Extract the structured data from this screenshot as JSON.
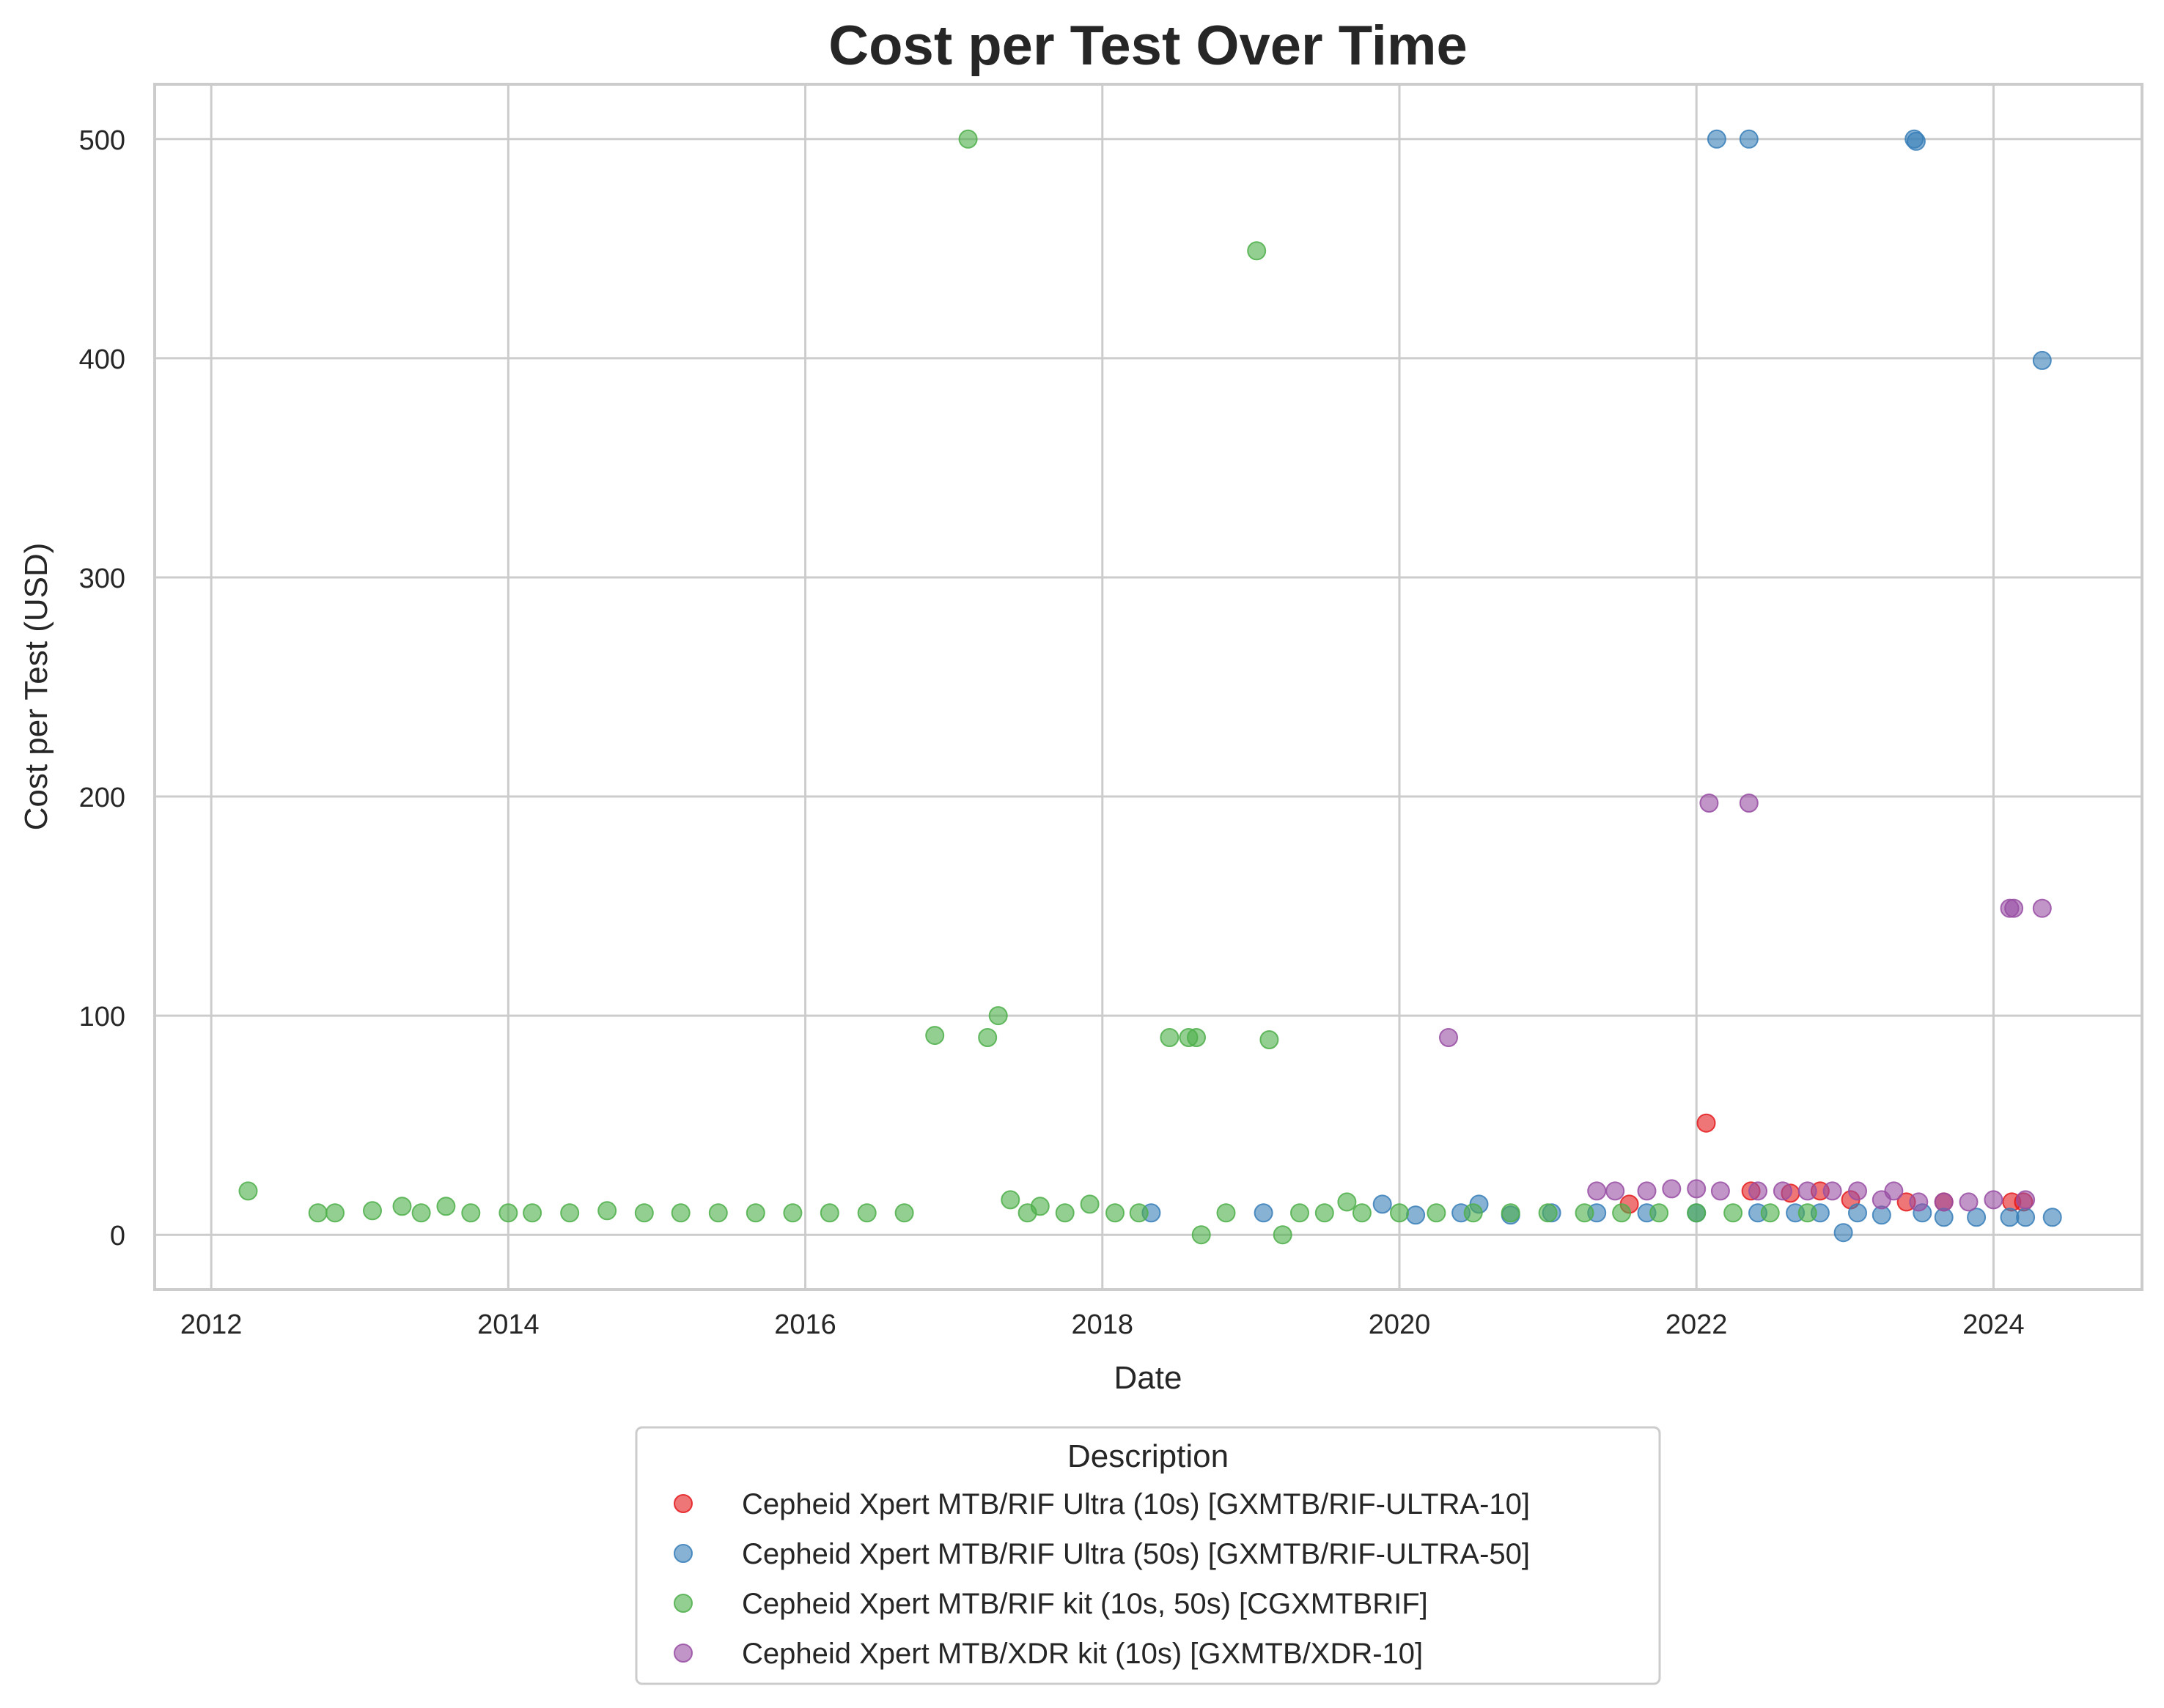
{
  "chart_data": {
    "type": "scatter",
    "title": "Cost per Test Over Time",
    "xlabel": "Date",
    "ylabel": "Cost per Test (USD)",
    "xlim": [
      "2011-08-15",
      "2025-01-01"
    ],
    "ylim": [
      -25,
      525
    ],
    "xticks": [
      "2012",
      "2014",
      "2016",
      "2018",
      "2020",
      "2022",
      "2024"
    ],
    "yticks": [
      0,
      100,
      200,
      300,
      400,
      500
    ],
    "grid": true,
    "legend": {
      "title": "Description",
      "position": "bottom-center"
    },
    "series": [
      {
        "name": "Cepheid Xpert MTB/RIF Ultra (10s) [GXMTB/RIF-ULTRA-10]",
        "color": "#e41a1c",
        "points": [
          [
            "2021-07-20",
            14
          ],
          [
            "2022-01-25",
            51
          ],
          [
            "2022-05-15",
            20
          ],
          [
            "2022-08-20",
            19
          ],
          [
            "2022-11-01",
            20
          ],
          [
            "2023-01-15",
            16
          ],
          [
            "2023-06-01",
            15
          ],
          [
            "2023-09-01",
            15
          ],
          [
            "2024-02-15",
            15
          ],
          [
            "2024-03-15",
            15
          ]
        ]
      },
      {
        "name": "Cepheid Xpert MTB/RIF Ultra (50s) [GXMTB/RIF-ULTRA-50]",
        "color": "#377eb8",
        "points": [
          [
            "2018-05-01",
            10
          ],
          [
            "2019-02-01",
            10
          ],
          [
            "2019-11-20",
            14
          ],
          [
            "2020-02-10",
            9
          ],
          [
            "2020-06-01",
            10
          ],
          [
            "2020-07-15",
            14
          ],
          [
            "2020-10-01",
            9
          ],
          [
            "2021-01-10",
            10
          ],
          [
            "2021-05-01",
            10
          ],
          [
            "2021-09-01",
            10
          ],
          [
            "2022-01-01",
            10
          ],
          [
            "2022-02-20",
            500
          ],
          [
            "2022-05-10",
            500
          ],
          [
            "2022-06-01",
            10
          ],
          [
            "2022-09-01",
            10
          ],
          [
            "2022-11-01",
            10
          ],
          [
            "2022-12-28",
            1
          ],
          [
            "2023-02-01",
            10
          ],
          [
            "2023-04-01",
            9
          ],
          [
            "2023-06-20",
            500
          ],
          [
            "2023-06-25",
            499
          ],
          [
            "2023-07-10",
            10
          ],
          [
            "2023-09-01",
            8
          ],
          [
            "2023-11-20",
            8
          ],
          [
            "2024-02-10",
            8
          ],
          [
            "2024-03-20",
            8
          ],
          [
            "2024-04-30",
            399
          ],
          [
            "2024-05-25",
            8
          ]
        ]
      },
      {
        "name": "Cepheid Xpert MTB/RIF kit (10s, 50s) [CGXMTBRIF]",
        "color": "#4daf4a",
        "points": [
          [
            "2012-04-01",
            20
          ],
          [
            "2012-09-20",
            10
          ],
          [
            "2012-11-01",
            10
          ],
          [
            "2013-02-01",
            11
          ],
          [
            "2013-04-15",
            13
          ],
          [
            "2013-06-01",
            10
          ],
          [
            "2013-08-01",
            13
          ],
          [
            "2013-10-01",
            10
          ],
          [
            "2014-01-01",
            10
          ],
          [
            "2014-03-01",
            10
          ],
          [
            "2014-06-01",
            10
          ],
          [
            "2014-09-01",
            11
          ],
          [
            "2014-12-01",
            10
          ],
          [
            "2015-03-01",
            10
          ],
          [
            "2015-06-01",
            10
          ],
          [
            "2015-09-01",
            10
          ],
          [
            "2015-12-01",
            10
          ],
          [
            "2016-03-01",
            10
          ],
          [
            "2016-06-01",
            10
          ],
          [
            "2016-09-01",
            10
          ],
          [
            "2016-11-15",
            91
          ],
          [
            "2017-02-05",
            500
          ],
          [
            "2017-03-25",
            90
          ],
          [
            "2017-04-20",
            100
          ],
          [
            "2017-05-20",
            16
          ],
          [
            "2017-07-01",
            10
          ],
          [
            "2017-08-01",
            13
          ],
          [
            "2017-10-01",
            10
          ],
          [
            "2017-12-01",
            14
          ],
          [
            "2018-02-01",
            10
          ],
          [
            "2018-04-01",
            10
          ],
          [
            "2018-06-15",
            90
          ],
          [
            "2018-08-01",
            90
          ],
          [
            "2018-08-20",
            90
          ],
          [
            "2018-09-01",
            0
          ],
          [
            "2018-11-01",
            10
          ],
          [
            "2019-01-15",
            449
          ],
          [
            "2019-02-15",
            89
          ],
          [
            "2019-03-20",
            0
          ],
          [
            "2019-05-01",
            10
          ],
          [
            "2019-07-01",
            10
          ],
          [
            "2019-08-25",
            15
          ],
          [
            "2019-10-01",
            10
          ],
          [
            "2020-01-01",
            10
          ],
          [
            "2020-04-01",
            10
          ],
          [
            "2020-07-01",
            10
          ],
          [
            "2020-10-01",
            10
          ],
          [
            "2021-01-01",
            10
          ],
          [
            "2021-04-01",
            10
          ],
          [
            "2021-07-01",
            10
          ],
          [
            "2021-10-01",
            10
          ],
          [
            "2022-01-01",
            10
          ],
          [
            "2022-04-01",
            10
          ],
          [
            "2022-07-01",
            10
          ],
          [
            "2022-10-01",
            10
          ]
        ]
      },
      {
        "name": "Cepheid Xpert MTB/XDR kit (10s) [GXMTB/XDR-10]",
        "color": "#984ea3",
        "points": [
          [
            "2020-05-01",
            90
          ],
          [
            "2021-05-01",
            20
          ],
          [
            "2021-06-15",
            20
          ],
          [
            "2021-09-01",
            20
          ],
          [
            "2021-11-01",
            21
          ],
          [
            "2022-01-01",
            21
          ],
          [
            "2022-02-01",
            197
          ],
          [
            "2022-03-01",
            20
          ],
          [
            "2022-05-10",
            197
          ],
          [
            "2022-06-01",
            20
          ],
          [
            "2022-08-01",
            20
          ],
          [
            "2022-10-01",
            20
          ],
          [
            "2022-12-01",
            20
          ],
          [
            "2023-02-01",
            20
          ],
          [
            "2023-04-01",
            16
          ],
          [
            "2023-05-01",
            20
          ],
          [
            "2023-07-01",
            15
          ],
          [
            "2023-09-01",
            15
          ],
          [
            "2023-11-01",
            15
          ],
          [
            "2024-01-01",
            16
          ],
          [
            "2024-02-10",
            149
          ],
          [
            "2024-02-20",
            149
          ],
          [
            "2024-03-20",
            16
          ],
          [
            "2024-04-30",
            149
          ]
        ]
      }
    ]
  }
}
